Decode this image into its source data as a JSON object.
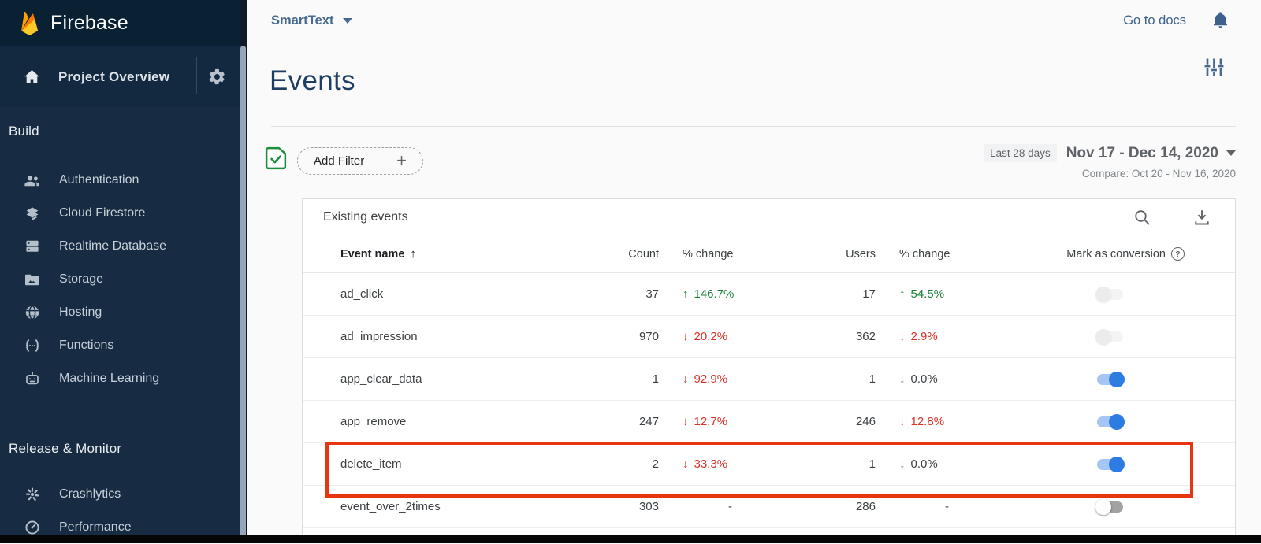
{
  "colors": {
    "sidebar_bg": "#172c42",
    "accent_blue": "#2c7ce1",
    "positive_green": "#188038",
    "negative_red": "#dd3124",
    "highlight_red": "#e8350f",
    "link_blue": "#3e618c"
  },
  "sidebar": {
    "brand": "Firebase",
    "project_overview": {
      "label": "Project Overview",
      "icon": "home-icon",
      "settings_icon": "gear-icon"
    },
    "sections": [
      {
        "heading": "Build",
        "items": [
          {
            "label": "Authentication",
            "icon": "users-icon"
          },
          {
            "label": "Cloud Firestore",
            "icon": "firestore-icon"
          },
          {
            "label": "Realtime Database",
            "icon": "database-icon"
          },
          {
            "label": "Storage",
            "icon": "folder-image-icon"
          },
          {
            "label": "Hosting",
            "icon": "globe-icon"
          },
          {
            "label": "Functions",
            "icon": "functions-icon"
          },
          {
            "label": "Machine Learning",
            "icon": "robot-icon"
          }
        ]
      },
      {
        "heading": "Release & Monitor",
        "items": [
          {
            "label": "Crashlytics",
            "icon": "crash-icon"
          },
          {
            "label": "Performance",
            "icon": "speedometer-icon"
          }
        ]
      }
    ]
  },
  "topbar": {
    "project_name": "SmartText",
    "go_to_docs": "Go to docs",
    "bell_icon": "notifications-bell-icon"
  },
  "page": {
    "title": "Events",
    "customize_icon": "tune-sliders-icon"
  },
  "filter_bar": {
    "status_icon": "data-collection-check-icon",
    "add_filter": "Add Filter",
    "date_badge": "Last 28 days",
    "date_range": "Nov 17 - Dec 14, 2020",
    "compare_label": "Compare: Oct 20 - Nov 16, 2020"
  },
  "events_table": {
    "title": "Existing events",
    "search_icon": "search-icon",
    "download_icon": "download-icon",
    "columns": {
      "event_name": "Event name",
      "count": "Count",
      "count_change": "% change",
      "users": "Users",
      "users_change": "% change",
      "mark_as_conversion": "Mark as conversion"
    },
    "rows": [
      {
        "name": "ad_click",
        "count": "37",
        "count_change": {
          "dir": "up",
          "value": "146.7%",
          "tone": "positive"
        },
        "users": "17",
        "users_change": {
          "dir": "up",
          "value": "54.5%",
          "tone": "positive"
        },
        "conversion": "off-disabled",
        "highlighted": false
      },
      {
        "name": "ad_impression",
        "count": "970",
        "count_change": {
          "dir": "down",
          "value": "20.2%",
          "tone": "negative"
        },
        "users": "362",
        "users_change": {
          "dir": "down",
          "value": "2.9%",
          "tone": "negative"
        },
        "conversion": "off-disabled",
        "highlighted": false
      },
      {
        "name": "app_clear_data",
        "count": "1",
        "count_change": {
          "dir": "down",
          "value": "92.9%",
          "tone": "negative"
        },
        "users": "1",
        "users_change": {
          "dir": "down",
          "value": "0.0%",
          "tone": "neutral"
        },
        "conversion": "on",
        "highlighted": false
      },
      {
        "name": "app_remove",
        "count": "247",
        "count_change": {
          "dir": "down",
          "value": "12.7%",
          "tone": "negative"
        },
        "users": "246",
        "users_change": {
          "dir": "down",
          "value": "12.8%",
          "tone": "negative"
        },
        "conversion": "on",
        "highlighted": false
      },
      {
        "name": "delete_item",
        "count": "2",
        "count_change": {
          "dir": "down",
          "value": "33.3%",
          "tone": "negative"
        },
        "users": "1",
        "users_change": {
          "dir": "down",
          "value": "0.0%",
          "tone": "neutral"
        },
        "conversion": "on",
        "highlighted": true
      },
      {
        "name": "event_over_2times",
        "count": "303",
        "count_change": {
          "dir": "none",
          "value": "-",
          "tone": "neutral"
        },
        "users": "286",
        "users_change": {
          "dir": "none",
          "value": "-",
          "tone": "neutral"
        },
        "conversion": "off",
        "highlighted": false
      }
    ]
  }
}
